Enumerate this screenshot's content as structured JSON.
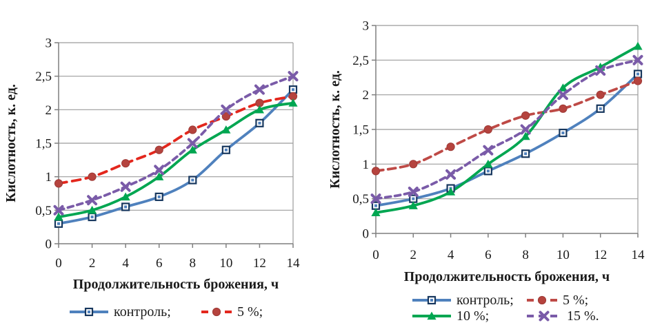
{
  "page": {
    "background": "#ffffff",
    "text_color": "#1a1a1a"
  },
  "chart_data": [
    {
      "type": "line",
      "title": "",
      "xlabel": "Продолжительность брожения, ч",
      "ylabel": "Кислотность, к. ед.",
      "x": [
        0,
        2,
        4,
        6,
        8,
        10,
        12,
        14
      ],
      "x_tick_labels": [
        "0",
        "2",
        "4",
        "6",
        "8",
        "10",
        "12",
        "14"
      ],
      "y_tick_labels": [
        "0",
        "0,5",
        "1",
        "1,5",
        "2",
        "2,5",
        "3"
      ],
      "ylim": [
        0,
        3
      ],
      "xlim": [
        0,
        14
      ],
      "grid": true,
      "legend_position": "bottom",
      "legend_rows": 1,
      "series": [
        {
          "name": "контроль;",
          "values": [
            0.3,
            0.4,
            0.55,
            0.7,
            0.95,
            1.4,
            1.8,
            2.3
          ],
          "color": "#4F81BD",
          "dash": null,
          "marker": "square",
          "marker_color": "#17375E",
          "marker_fill": "#FFFFFF",
          "in_legend": true
        },
        {
          "name": "5 %;",
          "values": [
            0.9,
            1.0,
            1.2,
            1.4,
            1.7,
            1.9,
            2.1,
            2.2
          ],
          "color": "#E3271D",
          "dash": "12 8",
          "marker": "circle",
          "marker_color": "#B5433E",
          "marker_fill": "#B5433E",
          "in_legend": true
        },
        {
          "name": "10 %",
          "values": [
            0.4,
            0.5,
            0.7,
            1.0,
            1.4,
            1.7,
            2.0,
            2.1
          ],
          "color": "#00A651",
          "dash": null,
          "marker": "triangle",
          "marker_color": "#00A651",
          "marker_fill": "#00A651",
          "in_legend": false
        },
        {
          "name": "15 %",
          "values": [
            0.5,
            0.65,
            0.85,
            1.1,
            1.5,
            2.0,
            2.3,
            2.5
          ],
          "color": "#7A5BA8",
          "dash": "8 6",
          "marker": "x",
          "marker_color": "#7A5BA8",
          "marker_fill": "#7A5BA8",
          "in_legend": false
        }
      ]
    },
    {
      "type": "line",
      "title": "",
      "xlabel": "Продолжительность брожения, ч",
      "ylabel": "Кислотность, к. ед.",
      "x": [
        0,
        2,
        4,
        6,
        8,
        10,
        12,
        14
      ],
      "x_tick_labels": [
        "0",
        "2",
        "4",
        "6",
        "8",
        "10",
        "12",
        "14"
      ],
      "y_tick_labels": [
        "0",
        "0,5",
        "1",
        "1,5",
        "2",
        "2,5",
        "3"
      ],
      "ylim": [
        0,
        3
      ],
      "xlim": [
        0,
        14
      ],
      "grid": true,
      "legend_position": "bottom",
      "legend_rows": 2,
      "series": [
        {
          "name": "контроль;",
          "values": [
            0.4,
            0.5,
            0.65,
            0.9,
            1.15,
            1.45,
            1.8,
            2.3
          ],
          "color": "#4F81BD",
          "dash": null,
          "marker": "square",
          "marker_color": "#17375E",
          "marker_fill": "#FFFFFF",
          "in_legend": true
        },
        {
          "name": "5 %;",
          "values": [
            0.9,
            1.0,
            1.25,
            1.5,
            1.7,
            1.8,
            2.0,
            2.2
          ],
          "color": "#BE4A46",
          "dash": "11 7",
          "marker": "circle",
          "marker_color": "#B5433E",
          "marker_fill": "#B5433E",
          "in_legend": true
        },
        {
          "name": "10 %;",
          "values": [
            0.3,
            0.4,
            0.6,
            1.0,
            1.4,
            2.1,
            2.4,
            2.7
          ],
          "color": "#00A651",
          "dash": null,
          "marker": "triangle",
          "marker_color": "#00A651",
          "marker_fill": "#00A651",
          "in_legend": true
        },
        {
          "name": "15 %.",
          "values": [
            0.5,
            0.6,
            0.85,
            1.2,
            1.5,
            2.0,
            2.35,
            2.5
          ],
          "color": "#7A5BA8",
          "dash": "8 6",
          "marker": "x",
          "marker_color": "#7A5BA8",
          "marker_fill": "#7A5BA8",
          "in_legend": true
        }
      ]
    }
  ],
  "style_colors": {
    "gridline": "#9B9B9B",
    "axis": "#7F7F7F",
    "tick_text": "#1a1a1a"
  }
}
